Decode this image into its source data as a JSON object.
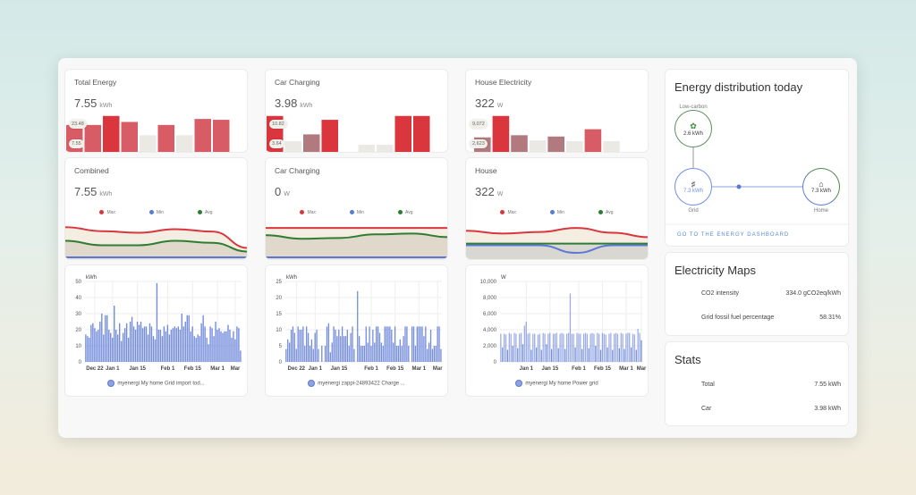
{
  "colors": {
    "red": "#d9363e",
    "pink": "#d85c65",
    "mauve": "#b07a7e",
    "gray": "#ebe9e4",
    "blue": "#5b78d6",
    "green": "#2e7d32",
    "beige": "#f4ede1",
    "tan": "#e0d8cb"
  },
  "bar_cards": [
    {
      "title": "Total Energy",
      "value": "7.55",
      "unit": "kWh",
      "tags": [
        "23.48",
        "7.55"
      ],
      "bars": [
        {
          "v": 0.67,
          "c": "pink"
        },
        {
          "v": 0.67,
          "c": "pink"
        },
        {
          "v": 0.88,
          "c": "red"
        },
        {
          "v": 0.74,
          "c": "pink"
        },
        {
          "v": 0.43,
          "c": "gray"
        },
        {
          "v": 0.67,
          "c": "pink"
        },
        {
          "v": 0.43,
          "c": "gray"
        },
        {
          "v": 0.81,
          "c": "pink"
        },
        {
          "v": 0.79,
          "c": "pink"
        }
      ]
    },
    {
      "title": "Car Charging",
      "value": "3.98",
      "unit": "kWh",
      "tags": [
        "10.82",
        "3.64"
      ],
      "bars": [
        {
          "v": 0.88,
          "c": "red"
        },
        {
          "v": 0.29,
          "c": "gray"
        },
        {
          "v": 0.45,
          "c": "mauve"
        },
        {
          "v": 0.79,
          "c": "red"
        },
        {
          "v": 0,
          "c": "gray"
        },
        {
          "v": 0.21,
          "c": "gray"
        },
        {
          "v": 0.21,
          "c": "gray"
        },
        {
          "v": 0.88,
          "c": "red"
        },
        {
          "v": 0.88,
          "c": "red"
        }
      ]
    },
    {
      "title": "House Electricity",
      "value": "322",
      "unit": "W",
      "tags": [
        "9,072",
        "2,623"
      ],
      "bars": [
        {
          "v": 0.38,
          "c": "mauve"
        },
        {
          "v": 0.88,
          "c": "red"
        },
        {
          "v": 0.43,
          "c": "mauve"
        },
        {
          "v": 0.31,
          "c": "gray"
        },
        {
          "v": 0.4,
          "c": "mauve"
        },
        {
          "v": 0.29,
          "c": "gray"
        },
        {
          "v": 0.57,
          "c": "pink"
        },
        {
          "v": 0.29,
          "c": "gray"
        }
      ]
    }
  ],
  "line_cards": [
    {
      "title": "Combined",
      "value": "7.55",
      "unit": "kWh",
      "legend": [
        "Max",
        "Min",
        "Avg"
      ],
      "max": [
        0.84,
        0.74,
        0.7,
        0.79,
        0.73,
        0.32
      ],
      "avg": [
        0.5,
        0.39,
        0.39,
        0.5,
        0.45,
        0.23
      ],
      "min": [
        0.09,
        0.09,
        0.09,
        0.09,
        0.09,
        0.09
      ]
    },
    {
      "title": "Car Charging",
      "value": "0",
      "unit": "W",
      "legend": [
        "Max",
        "Min",
        "Avg"
      ],
      "max": [
        0.82,
        0.82,
        0.82,
        0.82,
        0.82,
        0.82
      ],
      "avg": [
        0.64,
        0.55,
        0.57,
        0.66,
        0.68,
        0.59
      ],
      "min": [
        0.09,
        0.09,
        0.09,
        0.09,
        0.09,
        0.09
      ]
    },
    {
      "title": "House",
      "value": "322",
      "unit": "W",
      "legend": [
        "Max",
        "Min",
        "Avg"
      ],
      "max": [
        0.75,
        0.68,
        0.72,
        0.82,
        0.7,
        0.59
      ],
      "avg": [
        0.43,
        0.43,
        0.43,
        0.43,
        0.43,
        0.43
      ],
      "min": [
        0.39,
        0.39,
        0.39,
        0.2,
        0.39,
        0.39
      ]
    }
  ],
  "chart_data": [
    {
      "type": "bar",
      "ylabel": "kWh",
      "ylim": [
        0,
        50
      ],
      "yticks": [
        0,
        10,
        20,
        30,
        40,
        50
      ],
      "xticks": [
        {
          "label": "Dec 22",
          "i": 5
        },
        {
          "label": "Jan 1",
          "i": 15
        },
        {
          "label": "Jan 15",
          "i": 29
        },
        {
          "label": "Feb 1",
          "i": 46
        },
        {
          "label": "Feb 15",
          "i": 60
        },
        {
          "label": "Mar 1",
          "i": 74
        },
        {
          "label": "Mar",
          "i": 84
        }
      ],
      "legend": "myenergi My home Grid import tod...",
      "values": [
        17,
        16,
        15,
        23,
        24,
        21,
        19,
        20,
        25,
        30,
        17,
        29,
        29,
        20,
        18,
        15,
        35,
        20,
        17,
        24,
        13,
        18,
        21,
        24,
        15,
        25,
        28,
        22,
        20,
        25,
        23,
        25,
        21,
        22,
        22,
        17,
        24,
        22,
        16,
        14,
        49,
        20,
        20,
        16,
        22,
        19,
        23,
        17,
        20,
        21,
        22,
        21,
        22,
        20,
        30,
        22,
        25,
        29,
        29,
        19,
        22,
        16,
        15,
        17,
        16,
        24,
        29,
        22,
        15,
        11,
        22,
        21,
        16,
        25,
        20,
        21,
        19,
        18,
        19,
        19,
        23,
        20,
        15,
        19,
        14,
        22,
        21,
        7
      ]
    },
    {
      "type": "bar",
      "ylabel": "kWh",
      "ylim": [
        0,
        25
      ],
      "yticks": [
        0,
        5,
        10,
        15,
        20,
        25
      ],
      "xticks": [
        {
          "label": "Dec 22",
          "i": 6
        },
        {
          "label": "Jan 1",
          "i": 17
        },
        {
          "label": "Jan 15",
          "i": 31
        },
        {
          "label": "Feb 1",
          "i": 50
        },
        {
          "label": "Feb 15",
          "i": 64
        },
        {
          "label": "Mar 1",
          "i": 78
        },
        {
          "label": "Mar",
          "i": 89
        }
      ],
      "legend": "myenergi zappi-24893422 Charge ...",
      "values": [
        4,
        7,
        6,
        10,
        11,
        9,
        4,
        11,
        10,
        10,
        11,
        5,
        11,
        9,
        5,
        7,
        4,
        9,
        10,
        4,
        0,
        5,
        0,
        5,
        11,
        12,
        3,
        6,
        11,
        10,
        8,
        10,
        8,
        11,
        8,
        8,
        10,
        5,
        9,
        11,
        4,
        0,
        22,
        8,
        5,
        5,
        5,
        11,
        6,
        11,
        5,
        10,
        6,
        11,
        11,
        9,
        6,
        5,
        11,
        11,
        11,
        11,
        10,
        6,
        11,
        5,
        5,
        7,
        5,
        8,
        11,
        11,
        5,
        0,
        11,
        11,
        5,
        11,
        11,
        11,
        11,
        8,
        11,
        4,
        6,
        10,
        4,
        5,
        5,
        11,
        11,
        4
      ]
    },
    {
      "type": "bar",
      "ylabel": "W",
      "ylim": [
        0,
        10000
      ],
      "yticks": [
        0,
        2000,
        4000,
        6000,
        8000,
        10000
      ],
      "xticks": [
        {
          "label": "Jan 1",
          "i": 15
        },
        {
          "label": "Jan 15",
          "i": 29
        },
        {
          "label": "Feb 1",
          "i": 46
        },
        {
          "label": "Feb 15",
          "i": 60
        },
        {
          "label": "Mar 1",
          "i": 74
        },
        {
          "label": "Mar",
          "i": 83
        }
      ],
      "legend": "myenergi My home Power grid",
      "values": [
        3500,
        1800,
        3500,
        3400,
        1500,
        3600,
        3500,
        2000,
        3600,
        3500,
        1700,
        3500,
        3600,
        2200,
        4500,
        5000,
        3500,
        3600,
        1500,
        3500,
        3500,
        1800,
        3400,
        3500,
        1500,
        3600,
        3500,
        2200,
        3500,
        3600,
        1600,
        3500,
        3500,
        3600,
        1700,
        3500,
        3600,
        3500,
        1600,
        3500,
        3600,
        8500,
        3500,
        3500,
        1800,
        3600,
        3500,
        3500,
        1600,
        3500,
        3600,
        3500,
        1700,
        3500,
        3600,
        3500,
        2000,
        3600,
        3500,
        1500,
        3600,
        3500,
        3400,
        1800,
        3500,
        3600,
        1500,
        3500,
        3600,
        3500,
        1700,
        3600,
        3500,
        1600,
        3500,
        3600,
        3600,
        1800,
        3500,
        3400,
        1500,
        4100,
        3600,
        2700
      ]
    }
  ],
  "energy": {
    "title": "Energy distribution today",
    "low_carbon_label": "Low-carbon",
    "low_carbon_value": "2.6 kWh",
    "grid_value": "7.3 kWh",
    "grid_label": "Grid",
    "home_value": "7.3 kWh",
    "home_label": "Home",
    "link": "GO TO THE ENERGY DASHBOARD"
  },
  "elec_maps": {
    "title": "Electricity Maps",
    "rows": [
      {
        "label": "CO2 intensity",
        "value": "334.0 gCO2eq/kWh"
      },
      {
        "label": "Grid fossil fuel percentage",
        "value": "58.31%"
      }
    ]
  },
  "stats": {
    "title": "Stats",
    "rows": [
      {
        "label": "Total",
        "value": "7.55 kWh"
      },
      {
        "label": "Car",
        "value": "3.98 kWh"
      }
    ]
  }
}
